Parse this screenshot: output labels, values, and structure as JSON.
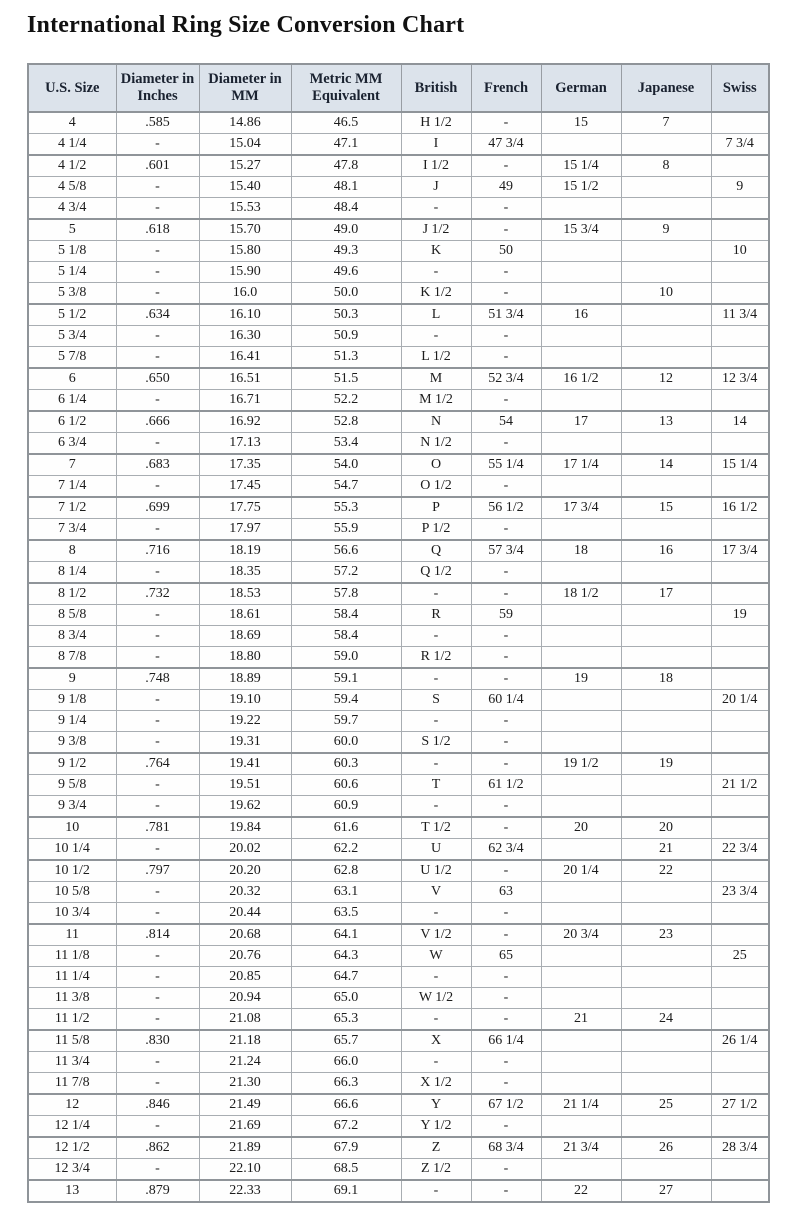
{
  "title": "International Ring Size Conversion Chart",
  "colors": {
    "header_bg": "#dce3eb",
    "border": "#a8adb2",
    "outer_border": "#8f9499",
    "text": "#1c1c1c"
  },
  "table": {
    "columns": [
      "U.S. Size",
      "Diameter in Inches",
      "Diameter in MM",
      "Metric MM Equivalent",
      "British",
      "French",
      "German",
      "Japanese",
      "Swiss"
    ],
    "rows": [
      [
        "4",
        ".585",
        "14.86",
        "46.5",
        "H 1/2",
        "-",
        "15",
        "7",
        ""
      ],
      [
        "4 1/4",
        "-",
        "15.04",
        "47.1",
        "I",
        "47 3/4",
        "",
        "",
        "7 3/4"
      ],
      [
        "4 1/2",
        ".601",
        "15.27",
        "47.8",
        "I 1/2",
        "-",
        "15 1/4",
        "8",
        ""
      ],
      [
        "4 5/8",
        "-",
        "15.40",
        "48.1",
        "J",
        "49",
        "15 1/2",
        "",
        "9"
      ],
      [
        "4 3/4",
        "-",
        "15.53",
        "48.4",
        "-",
        "-",
        "",
        "",
        ""
      ],
      [
        "5",
        ".618",
        "15.70",
        "49.0",
        "J 1/2",
        "-",
        "15 3/4",
        "9",
        ""
      ],
      [
        "5 1/8",
        "-",
        "15.80",
        "49.3",
        "K",
        "50",
        "",
        "",
        "10"
      ],
      [
        "5 1/4",
        "-",
        "15.90",
        "49.6",
        "-",
        "-",
        "",
        "",
        ""
      ],
      [
        "5 3/8",
        "-",
        "16.0",
        "50.0",
        "K 1/2",
        "-",
        "",
        "10",
        ""
      ],
      [
        "5 1/2",
        ".634",
        "16.10",
        "50.3",
        "L",
        "51 3/4",
        "16",
        "",
        "11 3/4"
      ],
      [
        "5 3/4",
        "-",
        "16.30",
        "50.9",
        "-",
        "-",
        "",
        "",
        ""
      ],
      [
        "5 7/8",
        "-",
        "16.41",
        "51.3",
        "L 1/2",
        "-",
        "",
        "",
        ""
      ],
      [
        "6",
        ".650",
        "16.51",
        "51.5",
        "M",
        "52 3/4",
        "16 1/2",
        "12",
        "12 3/4"
      ],
      [
        "6 1/4",
        "-",
        "16.71",
        "52.2",
        "M 1/2",
        "-",
        "",
        "",
        ""
      ],
      [
        "6 1/2",
        ".666",
        "16.92",
        "52.8",
        "N",
        "54",
        "17",
        "13",
        "14"
      ],
      [
        "6 3/4",
        "-",
        "17.13",
        "53.4",
        "N 1/2",
        "-",
        "",
        "",
        ""
      ],
      [
        "7",
        ".683",
        "17.35",
        "54.0",
        "O",
        "55 1/4",
        "17 1/4",
        "14",
        "15 1/4"
      ],
      [
        "7 1/4",
        "-",
        "17.45",
        "54.7",
        "O 1/2",
        "-",
        "",
        "",
        ""
      ],
      [
        "7 1/2",
        ".699",
        "17.75",
        "55.3",
        "P",
        "56 1/2",
        "17 3/4",
        "15",
        "16 1/2"
      ],
      [
        "7 3/4",
        "-",
        "17.97",
        "55.9",
        "P 1/2",
        "-",
        "",
        "",
        ""
      ],
      [
        "8",
        ".716",
        "18.19",
        "56.6",
        "Q",
        "57 3/4",
        "18",
        "16",
        "17 3/4"
      ],
      [
        "8 1/4",
        "-",
        "18.35",
        "57.2",
        "Q 1/2",
        "-",
        "",
        "",
        ""
      ],
      [
        "8 1/2",
        ".732",
        "18.53",
        "57.8",
        "-",
        "-",
        "18 1/2",
        "17",
        ""
      ],
      [
        "8 5/8",
        "-",
        "18.61",
        "58.4",
        "R",
        "59",
        "",
        "",
        "19"
      ],
      [
        "8 3/4",
        "-",
        "18.69",
        "58.4",
        "-",
        "-",
        "",
        "",
        ""
      ],
      [
        "8 7/8",
        "-",
        "18.80",
        "59.0",
        "R 1/2",
        "-",
        "",
        "",
        ""
      ],
      [
        "9",
        ".748",
        "18.89",
        "59.1",
        "-",
        "-",
        "19",
        "18",
        ""
      ],
      [
        "9 1/8",
        "-",
        "19.10",
        "59.4",
        "S",
        "60 1/4",
        "",
        "",
        "20 1/4"
      ],
      [
        "9 1/4",
        "-",
        "19.22",
        "59.7",
        "-",
        "-",
        "",
        "",
        ""
      ],
      [
        "9 3/8",
        "-",
        "19.31",
        "60.0",
        "S 1/2",
        "-",
        "",
        "",
        ""
      ],
      [
        "9 1/2",
        ".764",
        "19.41",
        "60.3",
        "-",
        "-",
        "19 1/2",
        "19",
        ""
      ],
      [
        "9 5/8",
        "-",
        "19.51",
        "60.6",
        "T",
        "61 1/2",
        "",
        "",
        "21 1/2"
      ],
      [
        "9 3/4",
        "-",
        "19.62",
        "60.9",
        "-",
        "-",
        "",
        "",
        ""
      ],
      [
        "10",
        ".781",
        "19.84",
        "61.6",
        "T 1/2",
        "-",
        "20",
        "20",
        ""
      ],
      [
        "10 1/4",
        "-",
        "20.02",
        "62.2",
        "U",
        "62 3/4",
        "",
        "21",
        "22 3/4"
      ],
      [
        "10 1/2",
        ".797",
        "20.20",
        "62.8",
        "U 1/2",
        "-",
        "20 1/4",
        "22",
        ""
      ],
      [
        "10 5/8",
        "-",
        "20.32",
        "63.1",
        "V",
        "63",
        "",
        "",
        "23 3/4"
      ],
      [
        "10 3/4",
        "-",
        "20.44",
        "63.5",
        "-",
        "-",
        "",
        "",
        ""
      ],
      [
        "11",
        ".814",
        "20.68",
        "64.1",
        "V 1/2",
        "-",
        "20 3/4",
        "23",
        ""
      ],
      [
        "11 1/8",
        "-",
        "20.76",
        "64.3",
        "W",
        "65",
        "",
        "",
        "25"
      ],
      [
        "11 1/4",
        "-",
        "20.85",
        "64.7",
        "-",
        "-",
        "",
        "",
        ""
      ],
      [
        "11 3/8",
        "-",
        "20.94",
        "65.0",
        "W 1/2",
        "-",
        "",
        "",
        ""
      ],
      [
        "11 1/2",
        "-",
        "21.08",
        "65.3",
        "-",
        "-",
        "21",
        "24",
        ""
      ],
      [
        "11 5/8",
        ".830",
        "21.18",
        "65.7",
        "X",
        "66 1/4",
        "",
        "",
        "26 1/4"
      ],
      [
        "11 3/4",
        "-",
        "21.24",
        "66.0",
        "-",
        "-",
        "",
        "",
        ""
      ],
      [
        "11 7/8",
        "-",
        "21.30",
        "66.3",
        "X 1/2",
        "-",
        "",
        "",
        ""
      ],
      [
        "12",
        ".846",
        "21.49",
        "66.6",
        "Y",
        "67 1/2",
        "21 1/4",
        "25",
        "27 1/2"
      ],
      [
        "12 1/4",
        "-",
        "21.69",
        "67.2",
        "Y 1/2",
        "-",
        "",
        "",
        ""
      ],
      [
        "12 1/2",
        ".862",
        "21.89",
        "67.9",
        "Z",
        "68 3/4",
        "21 3/4",
        "26",
        "28 3/4"
      ],
      [
        "12 3/4",
        "-",
        "22.10",
        "68.5",
        "Z 1/2",
        "-",
        "",
        "",
        ""
      ],
      [
        "13",
        ".879",
        "22.33",
        "69.1",
        "-",
        "-",
        "22",
        "27",
        ""
      ]
    ]
  }
}
